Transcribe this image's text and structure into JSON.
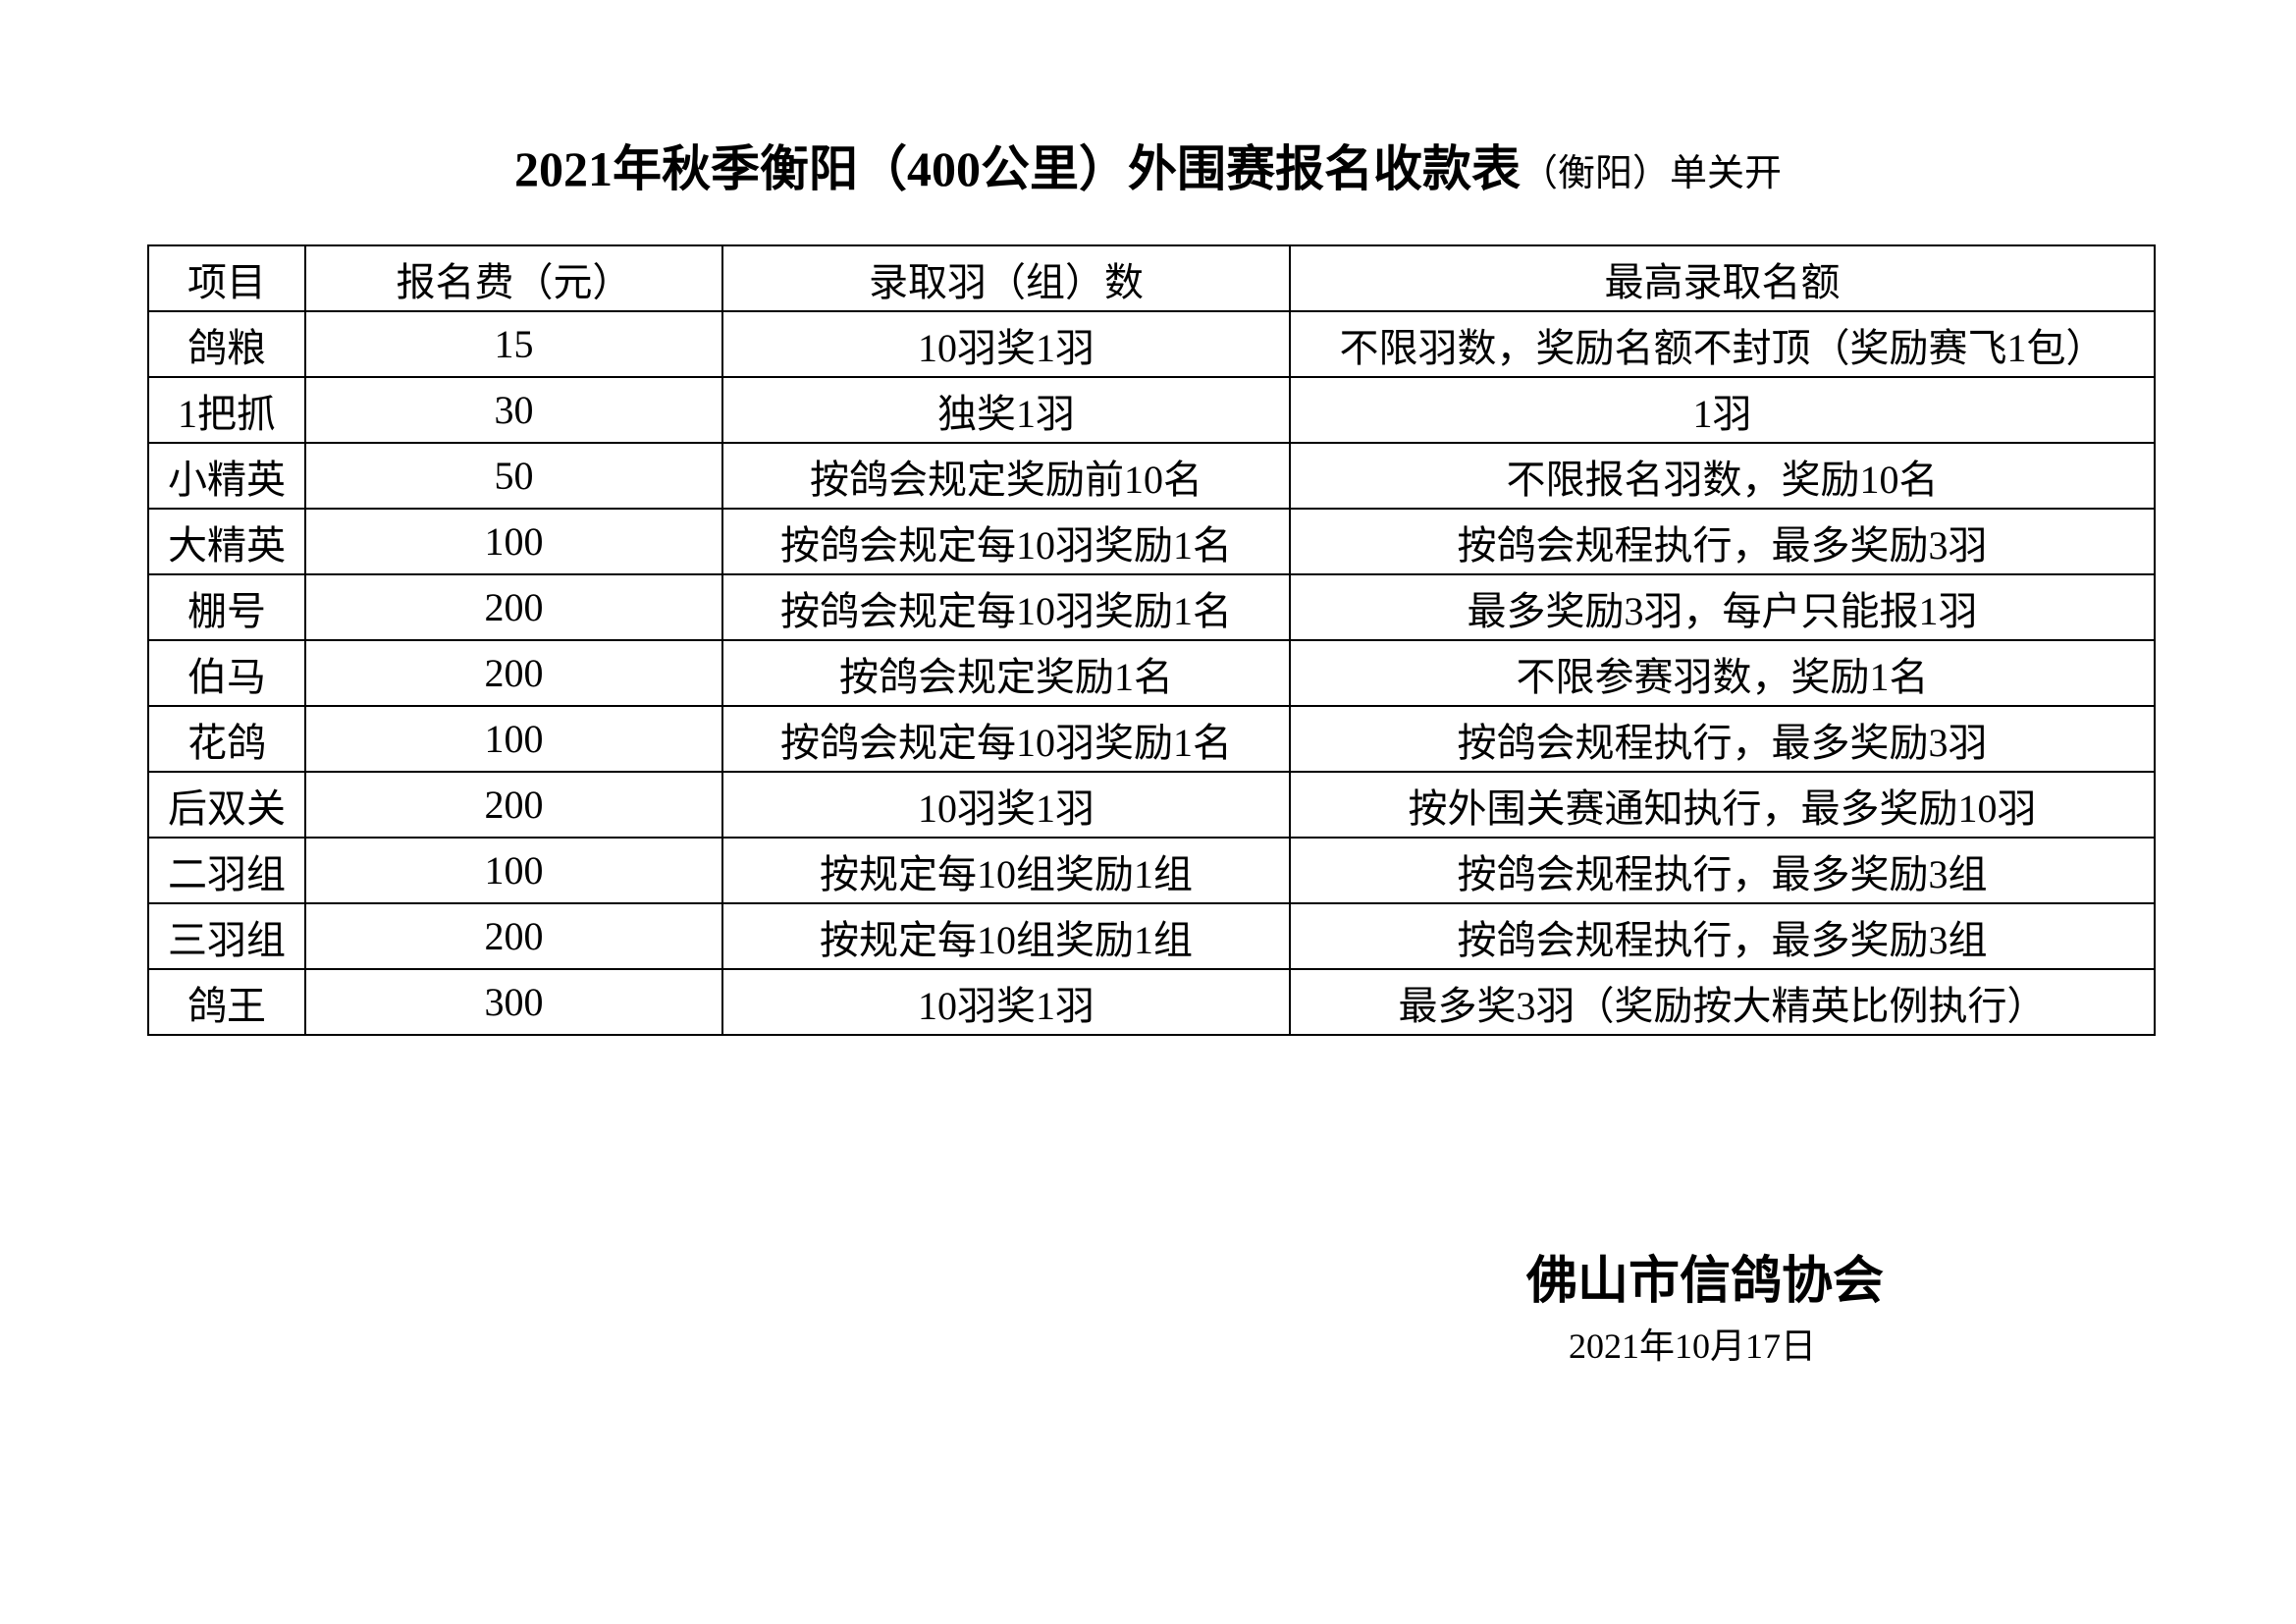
{
  "title": {
    "main": "2021年秋季衡阳（400公里）外围赛报名收款表",
    "sub": "（衡阳）",
    "tail": "单关开"
  },
  "table": {
    "headers": [
      "项目",
      "报名费（元）",
      "录取羽（组）数",
      "最高录取名额"
    ],
    "rows": [
      [
        "鸽粮",
        "15",
        "10羽奖1羽",
        "不限羽数，奖励名额不封顶（奖励赛飞1包）"
      ],
      [
        "1把抓",
        "30",
        "独奖1羽",
        "1羽"
      ],
      [
        "小精英",
        "50",
        "按鸽会规定奖励前10名",
        "不限报名羽数，奖励10名"
      ],
      [
        "大精英",
        "100",
        "按鸽会规定每10羽奖励1名",
        "按鸽会规程执行，最多奖励3羽"
      ],
      [
        "棚号",
        "200",
        "按鸽会规定每10羽奖励1名",
        "最多奖励3羽，每户只能报1羽"
      ],
      [
        "伯马",
        "200",
        "按鸽会规定奖励1名",
        "不限参赛羽数，奖励1名"
      ],
      [
        "花鸽",
        "100",
        "按鸽会规定每10羽奖励1名",
        "按鸽会规程执行，最多奖励3羽"
      ],
      [
        "后双关",
        "200",
        "10羽奖1羽",
        "按外围关赛通知执行，最多奖励10羽"
      ],
      [
        "二羽组",
        "100",
        "按规定每10组奖励1组",
        "按鸽会规程执行，最多奖励3组"
      ],
      [
        "三羽组",
        "200",
        "按规定每10组奖励1组",
        "按鸽会规程执行，最多奖励3组"
      ],
      [
        "鸽王",
        "300",
        "10羽奖1羽",
        "最多奖3羽（奖励按大精英比例执行）"
      ]
    ]
  },
  "footer": {
    "organization": "佛山市信鸽协会",
    "date": "2021年10月17日"
  }
}
